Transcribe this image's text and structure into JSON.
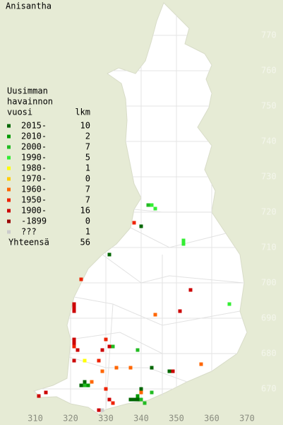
{
  "title": "Anisantha",
  "legend": {
    "heading": [
      "Uusimman",
      "havainnon",
      "vuosi"
    ],
    "count_heading": "lkm",
    "rows": [
      {
        "label": "2015-",
        "count": 10,
        "color": "#006600",
        "squares": [
          [
            340,
            716
          ],
          [
            331,
            708
          ],
          [
            343,
            676
          ],
          [
            348,
            675
          ],
          [
            323,
            671
          ],
          [
            324,
            672
          ],
          [
            340,
            670
          ],
          [
            337,
            667
          ],
          [
            338,
            667
          ],
          [
            339,
            667
          ]
        ]
      },
      {
        "label": "2010-",
        "count": 2,
        "color": "#009900",
        "squares": [
          [
            325,
            671
          ],
          [
            339,
            668
          ]
        ]
      },
      {
        "label": "2000-",
        "count": 7,
        "color": "#22bb22",
        "squares": [
          [
            332,
            682
          ],
          [
            339,
            681
          ],
          [
            343,
            669
          ],
          [
            340,
            667
          ],
          [
            324,
            671
          ],
          [
            341,
            666
          ],
          [
            342,
            722
          ]
        ]
      },
      {
        "label": "1990-",
        "count": 5,
        "color": "#33ee33",
        "squares": [
          [
            343,
            722
          ],
          [
            344,
            721
          ],
          [
            352,
            712
          ],
          [
            352,
            711
          ],
          [
            365,
            694
          ]
        ]
      },
      {
        "label": "1980-",
        "count": 1,
        "color": "#ffff00",
        "squares": [
          [
            324,
            678
          ]
        ]
      },
      {
        "label": "1970-",
        "count": 0,
        "color": "#ffcc00",
        "squares": []
      },
      {
        "label": "1960-",
        "count": 7,
        "color": "#ff6600",
        "squares": [
          [
            344,
            691
          ],
          [
            333,
            676
          ],
          [
            337,
            676
          ],
          [
            329,
            675
          ],
          [
            357,
            677
          ],
          [
            326,
            672
          ],
          [
            340,
            669
          ]
        ]
      },
      {
        "label": "1950-",
        "count": 7,
        "color": "#ee2200",
        "squares": [
          [
            338,
            717
          ],
          [
            323,
            701
          ],
          [
            330,
            684
          ],
          [
            321,
            682
          ],
          [
            328,
            678
          ],
          [
            330,
            670
          ],
          [
            332,
            666
          ]
        ]
      },
      {
        "label": "1900-",
        "count": 16,
        "color": "#cc0000",
        "squares": [
          [
            354,
            698
          ],
          [
            321,
            694
          ],
          [
            321,
            693
          ],
          [
            321,
            692
          ],
          [
            321,
            684
          ],
          [
            321,
            683
          ],
          [
            331,
            682
          ],
          [
            329,
            681
          ],
          [
            322,
            681
          ],
          [
            321,
            678
          ],
          [
            349,
            675
          ],
          [
            313,
            669
          ],
          [
            311,
            668
          ],
          [
            331,
            667
          ],
          [
            328,
            664
          ],
          [
            351,
            692
          ]
        ]
      },
      {
        "label": "-1899",
        "count": 0,
        "color": "#990000",
        "squares": []
      },
      {
        "label": "???",
        "count": 1,
        "color": "#cccccc",
        "squares": [
          [
            329,
            664
          ]
        ]
      }
    ],
    "total_label": "Yhteensä",
    "total": 56
  },
  "map": {
    "xlim": [
      300,
      380
    ],
    "ylim": [
      660,
      780
    ],
    "xticks": [
      310,
      320,
      330,
      340,
      350,
      360,
      370
    ],
    "yticks": [
      770,
      760,
      750,
      740,
      730,
      720,
      710,
      700,
      690,
      680,
      670
    ]
  }
}
